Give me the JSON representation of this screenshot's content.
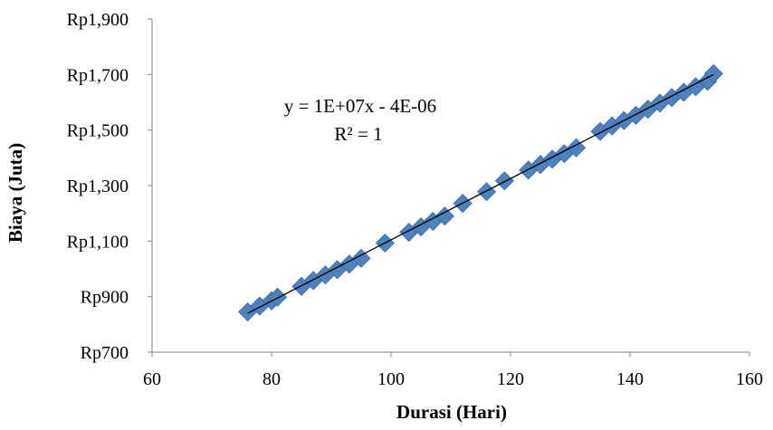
{
  "chart_data": {
    "type": "scatter",
    "title": "",
    "xlabel": "Durasi (Hari)",
    "ylabel": "Biaya (Juta)",
    "xlim": [
      60,
      160
    ],
    "ylim": [
      700,
      1900
    ],
    "x_ticks": [
      60,
      80,
      100,
      120,
      140,
      160
    ],
    "x_tick_labels": [
      "60",
      "80",
      "100",
      "120",
      "140",
      "160"
    ],
    "y_ticks": [
      700,
      900,
      1100,
      1300,
      1500,
      1700,
      1900
    ],
    "y_tick_labels": [
      "Rp700",
      "Rp900",
      "Rp1,100",
      "Rp1,300",
      "Rp1,500",
      "Rp1,700",
      "Rp1,900"
    ],
    "grid": false,
    "legend": "none",
    "series": [
      {
        "marker": "diamond",
        "color": "#4F81BD",
        "x": [
          76,
          78,
          80,
          81,
          85,
          87,
          89,
          91,
          93,
          95,
          99,
          103,
          105,
          107,
          109,
          112,
          116,
          119,
          123,
          125,
          127,
          129,
          131,
          135,
          137,
          139,
          141,
          143,
          145,
          147,
          149,
          151,
          153,
          154
        ],
        "y": [
          845,
          866,
          885,
          898,
          937,
          958,
          978,
          997,
          1017,
          1038,
          1093,
          1132,
          1151,
          1171,
          1190,
          1236,
          1278,
          1317,
          1356,
          1376,
          1395,
          1415,
          1436,
          1495,
          1515,
          1534,
          1553,
          1575,
          1597,
          1617,
          1636,
          1656,
          1676,
          1703
        ]
      }
    ],
    "trendline": {
      "type": "linear",
      "color": "#000000",
      "x": [
        76,
        154
      ],
      "y": [
        840,
        1700
      ]
    },
    "annotations": {
      "equation": "y = 1E+07x - 4E-06",
      "r_squared": "R² = 1"
    }
  }
}
